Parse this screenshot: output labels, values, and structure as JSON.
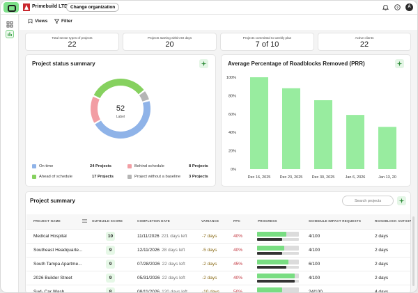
{
  "topbar": {
    "org_name": "Primebuild LTD.",
    "change_org_label": "Change organization",
    "avatar_initial": "A"
  },
  "toolbar": {
    "views_label": "Views",
    "filter_label": "Filter"
  },
  "kpis": [
    {
      "label": "Total sector types of projects",
      "value": "22"
    },
    {
      "label": "Projects starting within 60 days",
      "value": "20"
    },
    {
      "label": "Projects committed to weekly plan",
      "value": "7 of 10"
    },
    {
      "label": "Active clients",
      "value": "22"
    }
  ],
  "status_summary": {
    "title": "Project status summary",
    "center_value": "52",
    "center_label": "Label",
    "legend": [
      {
        "label": "On time",
        "count": "24 Projects",
        "value": 24,
        "color": "#8fb3e8"
      },
      {
        "label": "Behind schedule",
        "count": "8 Projects",
        "value": 8,
        "color": "#f29ea4"
      },
      {
        "label": "Ahead of schedule",
        "count": "17 Projects",
        "value": 17,
        "color": "#86d15f"
      },
      {
        "label": "Project without a baseline",
        "count": "3 Projects",
        "value": 3,
        "color": "#b5b5b5"
      }
    ]
  },
  "chart_data": {
    "type": "bar",
    "title": "Average Percentage of Roadblocks Removed (PRR)",
    "categories": [
      "Dec 16, 2025",
      "Dec 23, 2025",
      "Dec 30, 2025",
      "Jan 6, 2026",
      "Jan 13, 20"
    ],
    "values": [
      100,
      88,
      75,
      59,
      46
    ],
    "yticks": [
      "0%",
      "20%",
      "40%",
      "60%",
      "80%",
      "100%"
    ],
    "ylim": [
      0,
      100
    ],
    "bar_color": "#98ec9f",
    "grid": false
  },
  "project_summary": {
    "title": "Project summary",
    "search_placeholder": "Search projects",
    "columns": [
      "PROJECT NAME",
      "OUTBUILD SCORE",
      "COMPLETION DATE",
      "VARIANCE",
      "PPC",
      "PROGRESS",
      "SCHEDULE IMPACT REQUESTS",
      "ROADBLOCK ANTICIP"
    ],
    "rows": [
      {
        "name": "Medical Hospital",
        "score": "10",
        "date": "11/11/2026",
        "days_left": "221 days left",
        "variance": "-7 days",
        "ppc": "40%",
        "progress_planned": 0.7,
        "progress_actual": 0.6,
        "impact": "4/100",
        "roadblock": "2 days"
      },
      {
        "name": "Southeast Headquarte...",
        "score": "9",
        "date": "12/11/2026",
        "days_left": "28 days left",
        "variance": "-5 days",
        "ppc": "40%",
        "progress_planned": 0.65,
        "progress_actual": 0.6,
        "impact": "4/100",
        "roadblock": "2 days"
      },
      {
        "name": "South Tampa Apartme...",
        "score": "9",
        "date": "07/28/2026",
        "days_left": "22 days left",
        "variance": "-2 days",
        "ppc": "45%",
        "progress_planned": 0.75,
        "progress_actual": 0.7,
        "impact": "6/100",
        "roadblock": "2 days"
      },
      {
        "name": "2026 Builder Street",
        "score": "9",
        "date": "05/31/2026",
        "days_left": "22 days left",
        "variance": "-2 days",
        "ppc": "40%",
        "progress_planned": 0.9,
        "progress_actual": 0.9,
        "impact": "4/100",
        "roadblock": "2 days"
      },
      {
        "name": "Sud- Car Wash",
        "score": "8",
        "date": "08/11/2026",
        "days_left": "120 days left",
        "variance": "-10 days",
        "ppc": "50%",
        "progress_planned": 0.6,
        "progress_actual": 0.5,
        "impact": "24/100",
        "roadblock": "4 days"
      }
    ]
  },
  "colors": {
    "accent": "#7ee08a",
    "progress": "#79dd82"
  }
}
